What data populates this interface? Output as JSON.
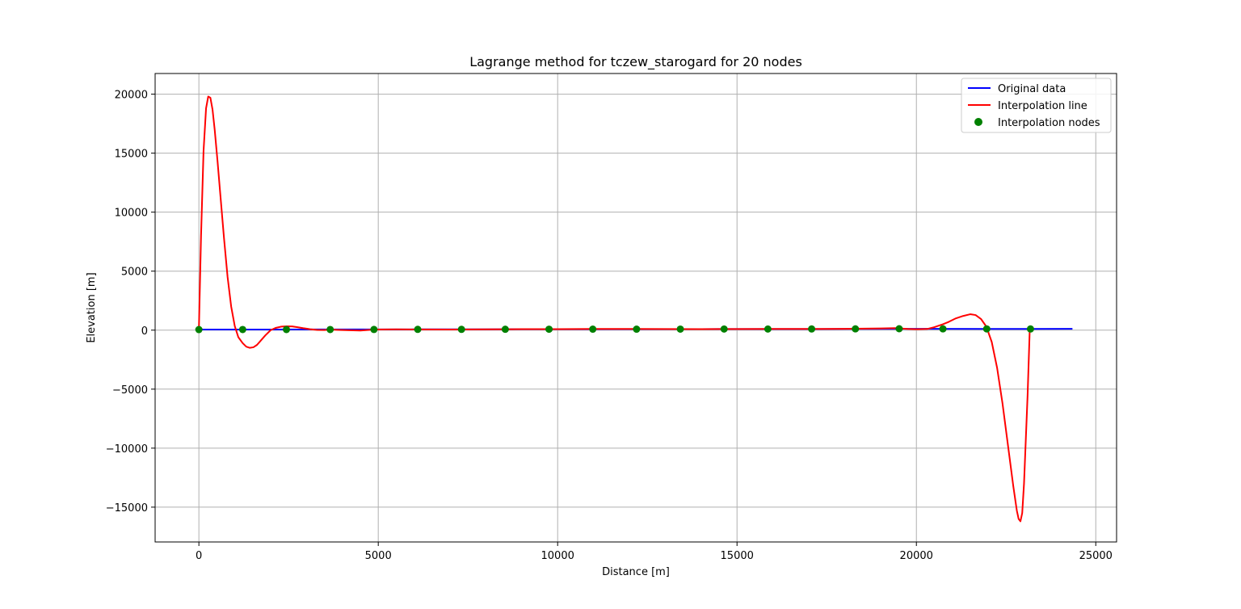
{
  "chart_data": {
    "type": "line",
    "title": "Lagrange method for tczew_starogard for 20 nodes",
    "xlabel": "Distance [m]",
    "ylabel": "Elevation [m]",
    "xlim": [
      -1220,
      25580
    ],
    "ylim": [
      -17950,
      21750
    ],
    "xticks": [
      0,
      5000,
      10000,
      15000,
      20000,
      25000
    ],
    "xtick_labels": [
      "0",
      "5000",
      "10000",
      "15000",
      "20000",
      "25000"
    ],
    "yticks": [
      -15000,
      -10000,
      -5000,
      0,
      5000,
      10000,
      15000,
      20000
    ],
    "ytick_labels": [
      "−15000",
      "−10000",
      "−5000",
      "0",
      "5000",
      "10000",
      "15000",
      "20000"
    ],
    "grid": true,
    "legend_position": "top-right",
    "series": [
      {
        "name": "Original data",
        "kind": "line",
        "color": "#0000ff",
        "x": [
          0,
          2000,
          4000,
          6000,
          8000,
          10000,
          12000,
          14000,
          16000,
          18000,
          20000,
          22000,
          24350
        ],
        "y": [
          50,
          55,
          60,
          65,
          70,
          80,
          85,
          90,
          95,
          100,
          110,
          105,
          110
        ]
      },
      {
        "name": "Interpolation line",
        "kind": "line",
        "color": "#ff0000",
        "x": [
          0,
          60,
          130,
          200,
          260,
          320,
          380,
          440,
          520,
          600,
          700,
          800,
          900,
          1000,
          1100,
          1220,
          1320,
          1420,
          1520,
          1620,
          1720,
          1850,
          2000,
          2150,
          2300,
          2450,
          2600,
          2750,
          2900,
          3100,
          3300,
          3500,
          3660,
          3900,
          4200,
          4500,
          4880,
          5500,
          6100,
          7000,
          8000,
          9000,
          10000,
          11000,
          12000,
          13000,
          14000,
          15000,
          16000,
          17000,
          18000,
          18500,
          19000,
          19400,
          19760,
          20000,
          20300,
          20500,
          20740,
          20900,
          21100,
          21300,
          21500,
          21650,
          21800,
          21950,
          22100,
          22250,
          22400,
          22550,
          22700,
          22800,
          22850,
          22900,
          22950,
          23000,
          23100,
          23160
        ],
        "y": [
          50,
          8000,
          15200,
          18800,
          19800,
          19700,
          18700,
          17000,
          14300,
          11400,
          7800,
          4500,
          2000,
          350,
          -600,
          -1100,
          -1400,
          -1500,
          -1450,
          -1250,
          -900,
          -450,
          0,
          200,
          300,
          330,
          320,
          250,
          170,
          80,
          20,
          10,
          50,
          20,
          -10,
          -30,
          50,
          70,
          60,
          55,
          70,
          85,
          90,
          100,
          100,
          95,
          90,
          95,
          100,
          105,
          110,
          130,
          150,
          170,
          100,
          80,
          100,
          250,
          500,
          700,
          1000,
          1200,
          1350,
          1280,
          950,
          300,
          -1000,
          -3200,
          -6200,
          -9700,
          -13200,
          -15300,
          -16000,
          -16200,
          -15500,
          -13000,
          -5500,
          100
        ]
      },
      {
        "name": "Interpolation nodes",
        "kind": "scatter",
        "color": "#008000",
        "x": [
          0,
          1220,
          2440,
          3660,
          4880,
          6100,
          7320,
          8540,
          9760,
          10980,
          12200,
          13420,
          14640,
          15860,
          17080,
          18300,
          19520,
          20740,
          21960,
          23180
        ],
        "y": [
          50,
          55,
          55,
          55,
          60,
          65,
          65,
          75,
          80,
          85,
          85,
          90,
          95,
          95,
          100,
          110,
          120,
          110,
          105,
          100
        ]
      }
    ]
  }
}
